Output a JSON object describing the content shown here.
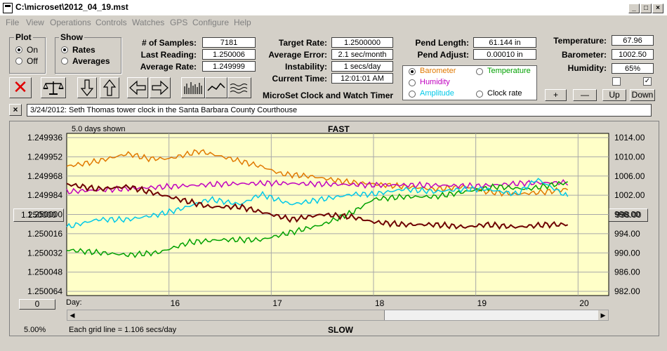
{
  "window": {
    "title": "C:\\microset\\2012_04_19.mst"
  },
  "menu": [
    "File",
    "View",
    "Operations",
    "Controls",
    "Watches",
    "GPS",
    "Configure",
    "Help"
  ],
  "plot_group": {
    "title": "Plot",
    "options": [
      "On",
      "Off"
    ],
    "selected": "On"
  },
  "show_group": {
    "title": "Show",
    "options": [
      "Rates",
      "Averages"
    ],
    "selected": "Rates"
  },
  "stats": {
    "samples_label": "# of Samples:",
    "samples": "7181",
    "last_label": "Last Reading:",
    "last": "1.250006",
    "avg_rate_label": "Average Rate:",
    "avg_rate": "1.249999",
    "target_label": "Target Rate:",
    "target": "1.2500000",
    "avg_err_label": "Average Error:",
    "avg_err": "2.1 sec/month",
    "instab_label": "Instability:",
    "instab": "1 secs/day",
    "time_label": "Current Time:",
    "time": "12:01:01 AM",
    "pend_len_label": "Pend Length:",
    "pend_len": "61.144 in",
    "pend_adj_label": "Pend Adjust:",
    "pend_adj": "0.00010 in",
    "temp_label": "Temperature:",
    "temp": "67.96",
    "baro_label": "Barometer:",
    "baro": "1002.50",
    "hum_label": "Humidity:",
    "hum": "65%"
  },
  "app_caption": "MicroSet Clock and Watch Timer",
  "sensor_group": {
    "options": [
      {
        "label": "Barometer",
        "color": "#e07800",
        "selected": true
      },
      {
        "label": "Temperature",
        "color": "#00a000",
        "selected": false
      },
      {
        "label": "Humidity",
        "color": "#c000c0",
        "selected": false
      },
      {
        "label": "Amplitude",
        "color": "#00c8e8",
        "selected": false
      },
      {
        "label": "Clock rate",
        "color": "#000000",
        "selected": false
      }
    ]
  },
  "scale_buttons": {
    "plus": "+",
    "minus": "—",
    "up": "Up",
    "down": "Down"
  },
  "note": {
    "close": "×",
    "text": "3/24/2012: Seth Thomas tower clock in the Santa Barbara County Courthouse"
  },
  "chart_header": {
    "days_shown": "5.0 days shown",
    "fast": "FAST",
    "slow": "SLOW",
    "grid_note": "Each grid line = 1.106 secs/day",
    "percent": "5.00%",
    "center_value": "1.250000",
    "zero_button": "0",
    "right_center": "998.00",
    "day_label": "Day:"
  },
  "chart_data": {
    "type": "line",
    "x_ticks": [
      "16",
      "17",
      "18",
      "19",
      "20"
    ],
    "y_left_ticks": [
      "1.249936",
      "1.249952",
      "1.249968",
      "1.249984",
      "1.250000",
      "1.250016",
      "1.250032",
      "1.250048",
      "1.250064"
    ],
    "y_right_ticks": [
      "1014.00",
      "1010.00",
      "1006.00",
      "1002.00",
      "998.00",
      "994.00",
      "990.00",
      "986.00",
      "982.00"
    ],
    "xlim": [
      15,
      20.3
    ],
    "ylim_left": [
      1.250064,
      1.249936
    ],
    "ylim_right": [
      982,
      1014
    ],
    "series": [
      {
        "color": "#e07800",
        "axis": "right",
        "x": [
          15.0,
          15.3,
          15.6,
          15.8,
          16.0,
          16.3,
          16.6,
          16.9,
          17.1,
          17.4,
          17.7,
          18.0,
          18.3,
          18.6,
          18.9,
          19.1,
          19.4,
          19.7,
          19.9
        ],
        "y": [
          1007.5,
          1008.5,
          1010,
          1009,
          1009,
          1010.5,
          1009,
          1007.5,
          1006,
          1005.5,
          1004.5,
          1004,
          1003.5,
          1003,
          1003.5,
          1002.5,
          1002,
          1002.5,
          1003
        ]
      },
      {
        "color": "#c000c0",
        "axis": "right",
        "x": [
          15.0,
          15.5,
          16.0,
          16.5,
          17.0,
          17.5,
          18.0,
          18.5,
          19.0,
          19.5,
          19.9
        ],
        "y": [
          1002.5,
          1003,
          1003.5,
          1004,
          1004.2,
          1004,
          1003.8,
          1003.8,
          1003.6,
          1004.2,
          1004.3
        ]
      },
      {
        "color": "#00a000",
        "axis": "right",
        "x": [
          15.0,
          15.3,
          15.6,
          15.9,
          16.2,
          16.5,
          16.9,
          17.2,
          17.5,
          17.8,
          18.0,
          18.3,
          18.6,
          18.9,
          19.2,
          19.5,
          19.8,
          19.9
        ],
        "y": [
          991,
          990.5,
          990,
          990.5,
          992.5,
          993,
          993,
          994.5,
          996,
          998.5,
          1001,
          1001.5,
          1001.5,
          1002.5,
          1003.5,
          1003,
          1004,
          1004.3
        ]
      },
      {
        "color": "#00c8e8",
        "axis": "right",
        "x": [
          15.0,
          15.3,
          15.6,
          15.9,
          16.1,
          16.4,
          16.7,
          16.9,
          17.2,
          17.5,
          17.8,
          18.0,
          18.3,
          18.6,
          18.9,
          19.1,
          19.4,
          19.6,
          19.9
        ],
        "y": [
          995.5,
          997,
          997,
          998,
          999,
          1001,
          1000,
          1002,
          1000,
          1001,
          1002,
          1002,
          1003,
          1002.5,
          1003,
          1003,
          1002,
          1005,
          1001.5
        ]
      },
      {
        "color": "#6e0000",
        "axis": "right",
        "x": [
          15.0,
          15.3,
          15.6,
          15.9,
          16.1,
          16.4,
          16.7,
          16.9,
          17.2,
          17.5,
          17.8,
          18.0,
          18.3,
          18.6,
          18.9,
          19.1,
          19.4,
          19.7,
          19.9
        ],
        "y": [
          1004,
          1003,
          1003.5,
          1002,
          1001,
          999.5,
          999.5,
          998.5,
          997,
          998,
          997.5,
          996.5,
          996,
          996,
          995.5,
          996,
          995.5,
          996,
          996
        ]
      }
    ]
  }
}
